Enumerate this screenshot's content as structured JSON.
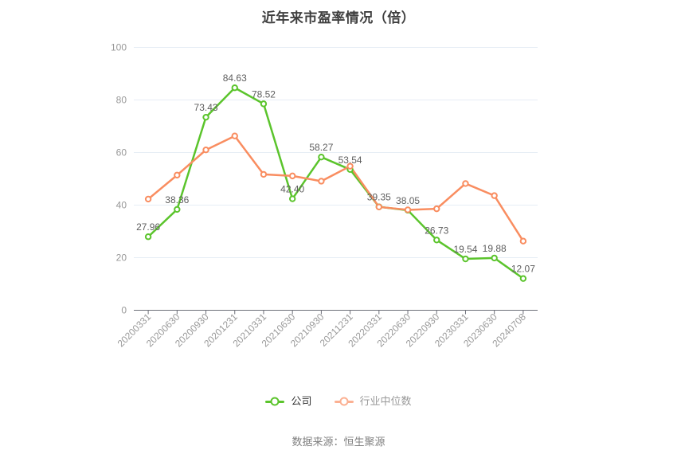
{
  "title": "近年来市盈率情况（倍）",
  "source": "数据来源：恒生聚源",
  "legend": {
    "items": [
      {
        "label": "公司",
        "marker_color": "#5BC42C",
        "label_color": "#333333"
      },
      {
        "label": "行业中位数",
        "marker_color": "#FBB092",
        "label_color": "#999999"
      }
    ]
  },
  "colors": {
    "grid": "#E6EDF5",
    "axis": "#6E7079",
    "tick_label": "#999999",
    "data_label": "#5E5E5E",
    "background": "#FFFFFF"
  },
  "chart_data": {
    "type": "line",
    "title": "近年来市盈率情况（倍）",
    "xlabel": "",
    "ylabel": "",
    "categories": [
      "20200331",
      "20200630",
      "20200930",
      "20201231",
      "20210331",
      "20210630",
      "20210930",
      "20211231",
      "20220331",
      "20220630",
      "20220930",
      "20230331",
      "20230630",
      "20240708"
    ],
    "series": [
      {
        "name": "公司",
        "color": "#5BC42C",
        "values": [
          27.96,
          38.36,
          73.43,
          84.63,
          78.52,
          42.4,
          58.27,
          53.54,
          39.35,
          38.05,
          26.73,
          19.54,
          19.88,
          12.07
        ],
        "point_labels": [
          "27.96",
          "38.36",
          "73.43",
          "84.63",
          "78.52",
          "42.40",
          "58.27",
          "53.54",
          "39.35",
          "38.05",
          "26.73",
          "19.54",
          "19.88",
          "12.07"
        ]
      },
      {
        "name": "行业中位数",
        "color": "#F98D60",
        "values": [
          42.3,
          51.4,
          61.0,
          66.3,
          51.7,
          51.1,
          49.1,
          54.8,
          39.3,
          38.2,
          38.6,
          48.2,
          43.6,
          26.3
        ],
        "values_estimated": true,
        "point_labels": []
      }
    ],
    "ylim": [
      0,
      100
    ],
    "yticks": [
      0,
      20,
      40,
      60,
      80,
      100
    ],
    "grid": true,
    "legend_position": "bottom"
  }
}
